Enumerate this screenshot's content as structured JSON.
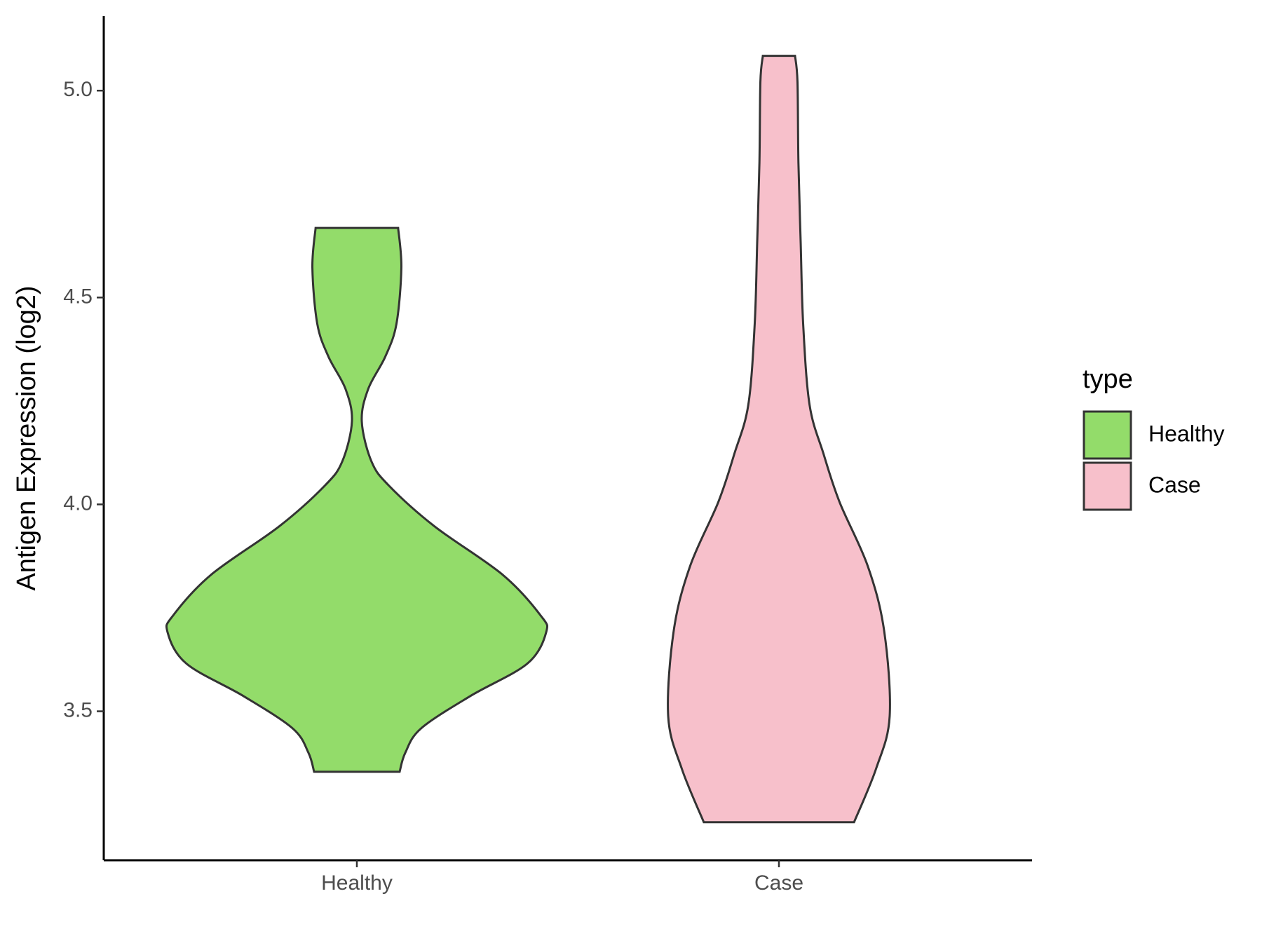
{
  "chart_data": {
    "type": "violin",
    "y_label": "Antigen Expression (log2)",
    "categories": [
      "Healthy",
      "Case"
    ],
    "ylim": [
      3.14,
      5.18
    ],
    "yticks": [
      3.5,
      {
        "value": 4,
        "label": "4.0"
      },
      4.5,
      {
        "value": 5,
        "label": "5.0"
      }
    ],
    "legend_title": "type",
    "legend_position": "right",
    "series": [
      {
        "name": "Healthy",
        "color": "#93dc6a",
        "y": [
          4.668,
          4.572,
          4.436,
          4.357,
          4.279,
          4.201,
          4.104,
          4.045,
          3.947,
          3.83,
          3.732,
          3.691,
          3.615,
          3.537,
          3.459,
          3.4,
          3.354
        ],
        "width": [
          0.218,
          0.235,
          0.209,
          0.15,
          0.06,
          0.026,
          0.077,
          0.17,
          0.41,
          0.77,
          0.97,
          1,
          0.9,
          0.6,
          0.34,
          0.256,
          0.226
        ]
      },
      {
        "name": "Case",
        "color": "#f7c0cb",
        "y": [
          5.084,
          5.021,
          4.826,
          4.631,
          4.436,
          4.24,
          4.123,
          4.006,
          3.85,
          3.694,
          3.488,
          3.361,
          3.232
        ],
        "width": [
          0.085,
          0.098,
          0.103,
          0.115,
          0.128,
          0.162,
          0.235,
          0.32,
          0.47,
          0.556,
          0.585,
          0.513,
          0.397
        ]
      }
    ]
  }
}
